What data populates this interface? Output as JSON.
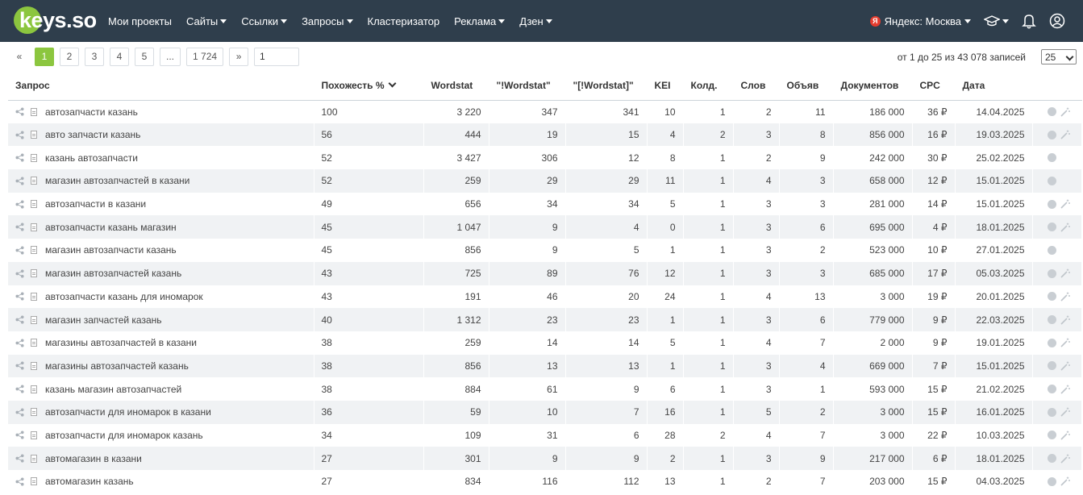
{
  "brand": {
    "logo_text": "keys.so"
  },
  "nav": {
    "items": [
      {
        "label": "Мои проекты",
        "caret": false,
        "name": "nav-my-projects"
      },
      {
        "label": "Сайты",
        "caret": true,
        "name": "nav-sites"
      },
      {
        "label": "Ссылки",
        "caret": true,
        "name": "nav-links"
      },
      {
        "label": "Запросы",
        "caret": true,
        "name": "nav-queries"
      },
      {
        "label": "Кластеризатор",
        "caret": false,
        "name": "nav-clusterizer"
      },
      {
        "label": "Реклама",
        "caret": true,
        "name": "nav-ads"
      },
      {
        "label": "Дзен",
        "caret": true,
        "name": "nav-dzen"
      }
    ],
    "region_badge": "Я",
    "region_label": "Яндекс: Москва",
    "icons": [
      "graduation-cap-icon",
      "bell-icon",
      "user-icon"
    ]
  },
  "pagination": {
    "prev": "«",
    "pages": [
      "1",
      "2",
      "3",
      "4",
      "5",
      "...",
      "1 724"
    ],
    "active_page": "1",
    "next": "»",
    "goto_value": "1",
    "records_text": "от 1 до 25 из 43 078 записей",
    "per_page": "25"
  },
  "colors": {
    "navbar": "#2f3e4c",
    "accent": "#8cc63f",
    "row_alt": "#f0f2f4"
  },
  "table": {
    "headers": {
      "query": "Запрос",
      "similarity": "Похожесть %",
      "wordstat": "Wordstat",
      "wordstat_exact": "\"!Wordstat\"",
      "wordstat_order": "\"[!Wordstat]\"",
      "kei": "KEI",
      "competitors": "Колд.",
      "words": "Слов",
      "ads": "Объяв",
      "documents": "Документов",
      "cpc": "CPC",
      "date": "Дата"
    },
    "rows": [
      {
        "query": "автозапчасти казань",
        "similarity": "100",
        "wordstat": "3 220",
        "wordstat_exact": "347",
        "wordstat_order": "341",
        "kei": "10",
        "competitors": "1",
        "words": "2",
        "ads": "11",
        "documents": "186 000",
        "cpc": "36 ₽",
        "date": "14.04.2025",
        "wand": true
      },
      {
        "query": "авто запчасти казань",
        "similarity": "56",
        "wordstat": "444",
        "wordstat_exact": "19",
        "wordstat_order": "15",
        "kei": "4",
        "competitors": "2",
        "words": "3",
        "ads": "8",
        "documents": "856 000",
        "cpc": "16 ₽",
        "date": "19.03.2025",
        "wand": true
      },
      {
        "query": "казань автозапчасти",
        "similarity": "52",
        "wordstat": "3 427",
        "wordstat_exact": "306",
        "wordstat_order": "12",
        "kei": "8",
        "competitors": "1",
        "words": "2",
        "ads": "9",
        "documents": "242 000",
        "cpc": "30 ₽",
        "date": "25.02.2025",
        "wand": false
      },
      {
        "query": "магазин автозапчастей в казани",
        "similarity": "52",
        "wordstat": "259",
        "wordstat_exact": "29",
        "wordstat_order": "29",
        "kei": "11",
        "competitors": "1",
        "words": "4",
        "ads": "3",
        "documents": "658 000",
        "cpc": "12 ₽",
        "date": "15.01.2025",
        "wand": false
      },
      {
        "query": "автозапчасти в казани",
        "similarity": "49",
        "wordstat": "656",
        "wordstat_exact": "34",
        "wordstat_order": "34",
        "kei": "5",
        "competitors": "1",
        "words": "3",
        "ads": "3",
        "documents": "281 000",
        "cpc": "14 ₽",
        "date": "15.01.2025",
        "wand": true
      },
      {
        "query": "автозапчасти казань магазин",
        "similarity": "45",
        "wordstat": "1 047",
        "wordstat_exact": "9",
        "wordstat_order": "4",
        "kei": "0",
        "competitors": "1",
        "words": "3",
        "ads": "6",
        "documents": "695 000",
        "cpc": "4 ₽",
        "date": "18.01.2025",
        "wand": true
      },
      {
        "query": "магазин автозапчасти казань",
        "similarity": "45",
        "wordstat": "856",
        "wordstat_exact": "9",
        "wordstat_order": "5",
        "kei": "1",
        "competitors": "1",
        "words": "3",
        "ads": "2",
        "documents": "523 000",
        "cpc": "10 ₽",
        "date": "27.01.2025",
        "wand": false
      },
      {
        "query": "магазин автозапчастей казань",
        "similarity": "43",
        "wordstat": "725",
        "wordstat_exact": "89",
        "wordstat_order": "76",
        "kei": "12",
        "competitors": "1",
        "words": "3",
        "ads": "3",
        "documents": "685 000",
        "cpc": "17 ₽",
        "date": "05.03.2025",
        "wand": true
      },
      {
        "query": "автозапчасти казань для иномарок",
        "similarity": "43",
        "wordstat": "191",
        "wordstat_exact": "46",
        "wordstat_order": "20",
        "kei": "24",
        "competitors": "1",
        "words": "4",
        "ads": "13",
        "documents": "3 000",
        "cpc": "19 ₽",
        "date": "20.01.2025",
        "wand": true
      },
      {
        "query": "магазин запчастей казань",
        "similarity": "40",
        "wordstat": "1 312",
        "wordstat_exact": "23",
        "wordstat_order": "23",
        "kei": "1",
        "competitors": "1",
        "words": "3",
        "ads": "6",
        "documents": "779 000",
        "cpc": "9 ₽",
        "date": "22.03.2025",
        "wand": true
      },
      {
        "query": "магазины автозапчастей в казани",
        "similarity": "38",
        "wordstat": "259",
        "wordstat_exact": "14",
        "wordstat_order": "14",
        "kei": "5",
        "competitors": "1",
        "words": "4",
        "ads": "7",
        "documents": "2 000",
        "cpc": "9 ₽",
        "date": "19.01.2025",
        "wand": true
      },
      {
        "query": "магазины автозапчастей казань",
        "similarity": "38",
        "wordstat": "856",
        "wordstat_exact": "13",
        "wordstat_order": "13",
        "kei": "1",
        "competitors": "1",
        "words": "3",
        "ads": "4",
        "documents": "669 000",
        "cpc": "7 ₽",
        "date": "15.01.2025",
        "wand": true
      },
      {
        "query": "казань магазин автозапчастей",
        "similarity": "38",
        "wordstat": "884",
        "wordstat_exact": "61",
        "wordstat_order": "9",
        "kei": "6",
        "competitors": "1",
        "words": "3",
        "ads": "1",
        "documents": "593 000",
        "cpc": "15 ₽",
        "date": "21.02.2025",
        "wand": true
      },
      {
        "query": "автозапчасти для иномарок в казани",
        "similarity": "36",
        "wordstat": "59",
        "wordstat_exact": "10",
        "wordstat_order": "7",
        "kei": "16",
        "competitors": "1",
        "words": "5",
        "ads": "2",
        "documents": "3 000",
        "cpc": "15 ₽",
        "date": "16.01.2025",
        "wand": true
      },
      {
        "query": "автозапчасти для иномарок казань",
        "similarity": "34",
        "wordstat": "109",
        "wordstat_exact": "31",
        "wordstat_order": "6",
        "kei": "28",
        "competitors": "2",
        "words": "4",
        "ads": "7",
        "documents": "3 000",
        "cpc": "22 ₽",
        "date": "10.03.2025",
        "wand": true
      },
      {
        "query": "автомагазин в казани",
        "similarity": "27",
        "wordstat": "301",
        "wordstat_exact": "9",
        "wordstat_order": "9",
        "kei": "2",
        "competitors": "1",
        "words": "3",
        "ads": "9",
        "documents": "217 000",
        "cpc": "6 ₽",
        "date": "18.01.2025",
        "wand": true
      },
      {
        "query": "автомагазин казань",
        "similarity": "27",
        "wordstat": "834",
        "wordstat_exact": "116",
        "wordstat_order": "112",
        "kei": "13",
        "competitors": "1",
        "words": "2",
        "ads": "7",
        "documents": "203 000",
        "cpc": "15 ₽",
        "date": "04.03.2025",
        "wand": true
      }
    ]
  }
}
